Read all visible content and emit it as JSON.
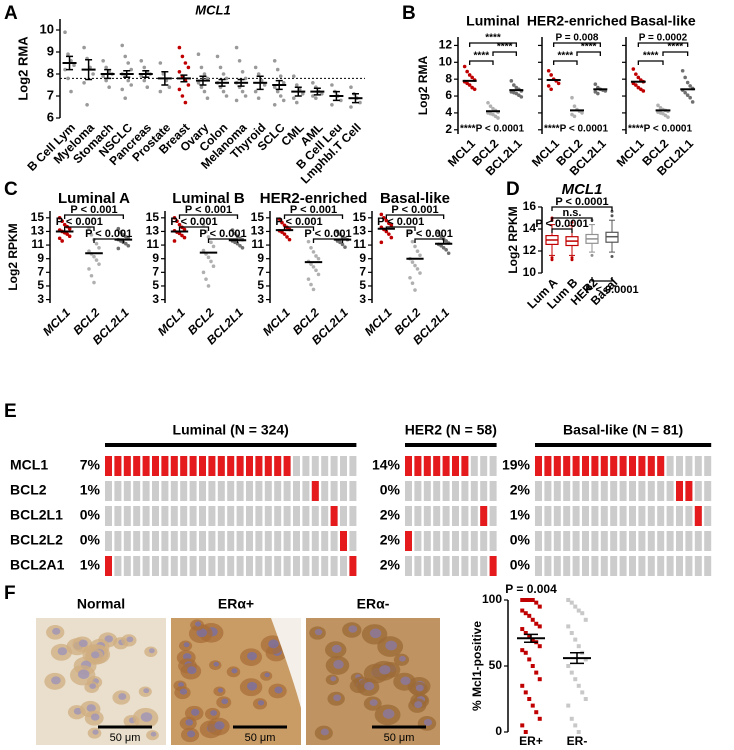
{
  "panel_labels": [
    "A",
    "B",
    "C",
    "D",
    "E",
    "F"
  ],
  "chart_data": [
    {
      "type": "dotplot",
      "title": "MCL1",
      "ylabel": "Log2 RMA",
      "ylim": [
        6,
        10.5
      ],
      "yticks": [
        6,
        7,
        8,
        9,
        10
      ],
      "reference_line": 7.8,
      "categories": [
        "B Cell Lym",
        "Myeloma",
        "Stomach",
        "NSCLC",
        "Pancreas",
        "Prostate",
        "Breast",
        "Ovary",
        "Colon",
        "Melanoma",
        "Thyroid",
        "SCLC",
        "CML",
        "AML",
        "B Cell Leu",
        "Lmphbl.T Cell"
      ],
      "values": [
        8.5,
        8.2,
        8.0,
        8.0,
        8.0,
        7.8,
        7.8,
        7.7,
        7.6,
        7.6,
        7.6,
        7.5,
        7.2,
        7.2,
        7.0,
        6.9
      ],
      "errors": [
        0.3,
        0.45,
        0.2,
        0.15,
        0.15,
        0.3,
        0.15,
        0.2,
        0.15,
        0.15,
        0.3,
        0.2,
        0.2,
        0.15,
        0.2,
        0.2
      ],
      "point_colors": [
        "#9a9a9a",
        "#9a9a9a",
        "#9a9a9a",
        "#9a9a9a",
        "#9a9a9a",
        "#9a9a9a",
        "#c00000",
        "#9a9a9a",
        "#9a9a9a",
        "#9a9a9a",
        "#9a9a9a",
        "#9a9a9a",
        "#9a9a9a",
        "#9a9a9a",
        "#9a9a9a",
        "#9a9a9a"
      ],
      "points": [
        [
          9.9,
          8.9,
          8.6,
          8.4,
          8.2,
          7.8,
          7.2
        ],
        [
          9.2,
          8.7,
          8.3,
          8.0,
          7.6,
          6.6
        ],
        [
          8.6,
          8.3,
          8.1,
          8.0,
          7.9,
          7.7,
          7.4
        ],
        [
          9.3,
          8.8,
          8.5,
          8.2,
          8.0,
          7.9,
          7.7,
          7.5,
          7.3,
          6.9
        ],
        [
          8.6,
          8.3,
          8.1,
          8.0,
          7.9,
          7.7,
          7.4
        ],
        [
          8.5,
          8.0,
          7.7,
          7.4,
          7.2
        ],
        [
          9.2,
          8.8,
          8.5,
          8.3,
          8.1,
          7.9,
          7.7,
          7.5,
          7.3,
          7.0,
          6.7
        ],
        [
          8.9,
          8.3,
          8.0,
          7.8,
          7.6,
          7.4,
          7.2,
          6.9
        ],
        [
          8.8,
          8.3,
          8.0,
          7.8,
          7.6,
          7.4,
          7.2,
          7.0
        ],
        [
          9.2,
          8.6,
          8.1,
          7.8,
          7.6,
          7.4,
          7.2,
          7.0,
          6.8
        ],
        [
          8.3,
          8.0,
          7.7,
          7.5,
          7.2,
          6.9
        ],
        [
          8.6,
          8.2,
          7.9,
          7.6,
          7.4,
          7.2,
          7.0,
          6.8,
          6.6
        ],
        [
          7.9,
          7.5,
          7.3,
          7.1,
          6.9,
          6.7
        ],
        [
          7.6,
          7.4,
          7.2,
          7.1,
          7.0,
          6.9
        ],
        [
          7.5,
          7.2,
          7.0,
          6.8,
          6.6
        ],
        [
          7.4,
          7.1,
          6.9,
          6.7,
          6.5
        ]
      ]
    },
    {
      "type": "grouped-dotplot",
      "ylabel": "Log2 RMA",
      "ylim": [
        1.5,
        13
      ],
      "yticks": [
        2,
        4,
        6,
        8,
        10,
        12
      ],
      "categories": [
        "MCL1",
        "BCL2",
        "BCL2L1"
      ],
      "colors": [
        "#c00000",
        "#b0b0b0",
        "#707070"
      ],
      "subplots": [
        {
          "title": "Luminal",
          "values": [
            7.8,
            4.2,
            6.7
          ],
          "points": [
            [
              9.5,
              8.9,
              8.5,
              8.2,
              7.9,
              7.7,
              7.5,
              7.3,
              7.0,
              6.8
            ],
            [
              5.2,
              4.8,
              4.5,
              4.3,
              4.1,
              4.0,
              3.9,
              3.8,
              3.6,
              3.4
            ],
            [
              7.8,
              7.3,
              7.0,
              6.8,
              6.6,
              6.5,
              6.4,
              6.3,
              6.1,
              5.9
            ]
          ],
          "brackets": [
            {
              "from": 0,
              "to": 2,
              "label": "****"
            },
            {
              "from": 1,
              "to": 2,
              "label": "****"
            },
            {
              "from": 0,
              "to": 1,
              "label": "****"
            }
          ],
          "footnote": "****P < 0.0001"
        },
        {
          "title": "HER2-enriched",
          "values": [
            7.9,
            4.3,
            6.8
          ],
          "points": [
            [
              9.0,
              8.5,
              8.0,
              7.8,
              7.5,
              7.2,
              6.8
            ],
            [
              5.8,
              4.8,
              4.4,
              4.2,
              4.0,
              3.8,
              3.6
            ],
            [
              7.4,
              7.0,
              6.8,
              6.7,
              6.6,
              6.5,
              6.3
            ]
          ],
          "brackets": [
            {
              "from": 0,
              "to": 2,
              "label": "P = 0.008"
            },
            {
              "from": 1,
              "to": 2,
              "label": "****"
            },
            {
              "from": 0,
              "to": 1,
              "label": "****"
            }
          ],
          "footnote": "****P < 0.0001"
        },
        {
          "title": "Basal-like",
          "values": [
            7.7,
            4.3,
            6.8
          ],
          "points": [
            [
              9.2,
              8.6,
              8.2,
              7.9,
              7.7,
              7.5,
              7.3,
              7.0,
              6.8,
              6.6
            ],
            [
              4.9,
              4.6,
              4.4,
              4.3,
              4.2,
              4.1,
              4.0,
              3.9,
              3.7,
              3.5
            ],
            [
              9.0,
              8.2,
              7.6,
              7.2,
              6.9,
              6.7,
              6.4,
              6.1,
              5.8,
              5.3
            ]
          ],
          "brackets": [
            {
              "from": 0,
              "to": 2,
              "label": "P = 0.0002"
            },
            {
              "from": 1,
              "to": 2,
              "label": "****"
            },
            {
              "from": 0,
              "to": 1,
              "label": "****"
            }
          ],
          "footnote": "****P < 0.0001"
        }
      ]
    },
    {
      "type": "grouped-dotplot",
      "ylabel": "Log2 RPKM",
      "ylim": [
        2.5,
        16
      ],
      "yticks": [
        3,
        5,
        7,
        9,
        11,
        13,
        15
      ],
      "categories": [
        "MCL1",
        "BCL2",
        "BCL2L1"
      ],
      "colors": [
        "#c00000",
        "#b0b0b0",
        "#707070"
      ],
      "subplots": [
        {
          "title": "Luminal A",
          "values": [
            13.0,
            9.8,
            11.8
          ],
          "points": [
            [
              15,
              14.5,
              14,
              13.7,
              13.4,
              13.2,
              13,
              12.8,
              12.6,
              12.3,
              12,
              11.6
            ],
            [
              13.5,
              12.5,
              11.8,
              11.2,
              10.6,
              10.1,
              9.7,
              9.3,
              8.8,
              8.2,
              7.5,
              6.5,
              5.5
            ],
            [
              13.4,
              12.9,
              12.5,
              12.2,
              12,
              11.8,
              11.6,
              11.4,
              11.2,
              10.9,
              10.5
            ]
          ],
          "brackets": [
            {
              "from": 0,
              "to": 2,
              "label": "P < 0.001"
            },
            {
              "from": 0,
              "to": 1,
              "label": "P < 0.001"
            },
            {
              "from": 1,
              "to": 2,
              "label": "P < 0.001"
            }
          ]
        },
        {
          "title": "Luminal B",
          "values": [
            13.0,
            9.9,
            11.7
          ],
          "points": [
            [
              15,
              14.5,
              14,
              13.6,
              13.3,
              13.1,
              12.9,
              12.7,
              12.4,
              12.1,
              11.6
            ],
            [
              14,
              13,
              12.2,
              11.4,
              10.8,
              10.2,
              9.7,
              9.2,
              8.6,
              7.9,
              7,
              6,
              5
            ],
            [
              13.2,
              12.7,
              12.3,
              12,
              11.8,
              11.6,
              11.4,
              11.2,
              10.9,
              10.6
            ]
          ],
          "brackets": [
            {
              "from": 0,
              "to": 2,
              "label": "P < 0.001"
            },
            {
              "from": 0,
              "to": 1,
              "label": "P < 0.001"
            },
            {
              "from": 1,
              "to": 2,
              "label": "P < 0.001"
            }
          ]
        },
        {
          "title": "HER2-enriched",
          "values": [
            13.2,
            8.5,
            11.8
          ],
          "points": [
            [
              14.8,
              14.3,
              13.9,
              13.6,
              13.3,
              13.1,
              12.9,
              12.6,
              12.2,
              11.8
            ],
            [
              11.5,
              10.6,
              10,
              9.4,
              9,
              8.6,
              8.2,
              7.8,
              7.3,
              6.7,
              6,
              5.2,
              4.5
            ],
            [
              13,
              12.6,
              12.2,
              12,
              11.8,
              11.6,
              11.4,
              11.1,
              10.7
            ]
          ],
          "brackets": [
            {
              "from": 0,
              "to": 2,
              "label": "P < 0.001"
            },
            {
              "from": 0,
              "to": 1,
              "label": "P < 0.001"
            },
            {
              "from": 1,
              "to": 2,
              "label": "P < 0.001"
            }
          ]
        },
        {
          "title": "Basal-like",
          "values": [
            13.4,
            9.0,
            11.2
          ],
          "points": [
            [
              15.5,
              15,
              14.6,
              14.2,
              13.9,
              13.6,
              13.3,
              13,
              12.6,
              12.1,
              11.4
            ],
            [
              13,
              11.5,
              10.8,
              10.1,
              9.5,
              9,
              8.5,
              8,
              7.5,
              6.9,
              6.2,
              5.4,
              4.4
            ],
            [
              12.8,
              12.3,
              11.9,
              11.6,
              11.3,
              11.1,
              10.9,
              10.6,
              10.3,
              9.8
            ]
          ],
          "brackets": [
            {
              "from": 0,
              "to": 2,
              "label": "P < 0.001"
            },
            {
              "from": 0,
              "to": 1,
              "label": "P < 0.001"
            },
            {
              "from": 1,
              "to": 2,
              "label": "P < 0.001"
            }
          ]
        }
      ]
    },
    {
      "type": "boxplot",
      "title": "MCL1",
      "ylabel": "Log2 RPKM",
      "ylim": [
        10,
        16
      ],
      "yticks": [
        10,
        12,
        14,
        16
      ],
      "categories": [
        "Lum A",
        "Lum B",
        "HER2",
        "Basal"
      ],
      "colors": [
        "#c00000",
        "#c00000",
        "#909090",
        "#555555"
      ],
      "q1": [
        12.6,
        12.5,
        12.7,
        12.8
      ],
      "median": [
        13.0,
        12.9,
        13.1,
        13.3
      ],
      "q3": [
        13.4,
        13.3,
        13.5,
        13.7
      ],
      "whisker_low": [
        11.6,
        11.6,
        11.9,
        11.9
      ],
      "whisker_high": [
        14.4,
        14.3,
        14.4,
        14.8
      ],
      "outliers": [
        [
          11.2,
          11.4,
          14.8,
          15.0
        ],
        [
          11.2,
          11.4,
          14.6
        ],
        [
          11.6,
          14.8
        ],
        [
          11.5,
          15.2,
          15.6
        ]
      ],
      "brackets": [
        {
          "from": 0,
          "to": 3,
          "label": "P < 0.0001"
        },
        {
          "from": 0,
          "to": 2,
          "label": "n.s."
        },
        {
          "from": 0,
          "to": 1,
          "label": "P < 0.0001"
        },
        {
          "from": 2,
          "to": 3,
          "label": "P < 0.0001",
          "below": true
        }
      ]
    },
    {
      "type": "dotplot",
      "ylabel": "% Mcl1-positive",
      "ylim": [
        0,
        100
      ],
      "yticks": [
        0,
        50,
        100
      ],
      "annotation": "P = 0.004",
      "categories": [
        "ER+",
        "ER-"
      ],
      "values": [
        71,
        56
      ],
      "errors": [
        3,
        4
      ],
      "point_colors": [
        "#c00000",
        "#c8c8c8"
      ],
      "points": [
        [
          100,
          100,
          100,
          100,
          98,
          95,
          92,
          90,
          88,
          85,
          82,
          80,
          78,
          75,
          72,
          70,
          68,
          65,
          62,
          60,
          55,
          50,
          45,
          40,
          35,
          30,
          25,
          20,
          15,
          10,
          5,
          0
        ],
        [
          100,
          98,
          95,
          92,
          90,
          85,
          80,
          75,
          70,
          65,
          60,
          55,
          50,
          45,
          40,
          35,
          30,
          25,
          20,
          10,
          5,
          0
        ]
      ]
    }
  ],
  "oncoprint": {
    "genes": [
      "MCL1",
      "BCL2",
      "BCL2L1",
      "BCL2L2",
      "BCL2A1"
    ],
    "altered_color": "#e41a1c",
    "unaltered_color": "#cccccc",
    "groups": [
      {
        "title": "Luminal (N = 324)",
        "columns": 27,
        "percents": [
          "7%",
          "1%",
          "0%",
          "0%",
          "1%"
        ],
        "altered": [
          [
            0,
            1,
            2,
            3,
            4,
            5,
            6,
            7,
            8,
            9,
            10,
            11,
            12,
            13,
            14,
            15,
            16,
            17,
            18,
            19
          ],
          [
            22
          ],
          [
            24
          ],
          [
            25
          ],
          [
            0,
            26
          ]
        ]
      },
      {
        "title": "HER2 (N = 58)",
        "columns": 10,
        "percents": [
          "14%",
          "0%",
          "2%",
          "2%",
          "2%"
        ],
        "altered": [
          [
            0,
            1,
            2,
            3,
            4,
            5,
            6
          ],
          [],
          [
            8
          ],
          [
            0
          ],
          [
            9
          ]
        ]
      },
      {
        "title": "Basal-like (N = 81)",
        "columns": 19,
        "percents": [
          "19%",
          "2%",
          "1%",
          "0%",
          "0%"
        ],
        "altered": [
          [
            0,
            1,
            2,
            3,
            4,
            5,
            6,
            7,
            8,
            9,
            10,
            11,
            12,
            13
          ],
          [
            15,
            16
          ],
          [
            17
          ],
          [],
          []
        ]
      }
    ]
  },
  "figure_images": [
    {
      "title": "Normal",
      "scale_bar": "50 μm"
    },
    {
      "title": "ERα+",
      "scale_bar": "50 μm"
    },
    {
      "title": "ERα-",
      "scale_bar": "50 μm"
    }
  ]
}
